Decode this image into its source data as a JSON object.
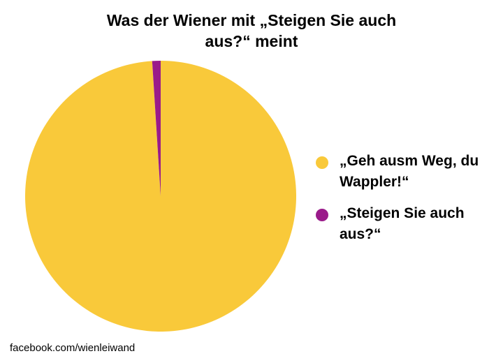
{
  "chart_data": {
    "type": "pie",
    "title": "Was der Wiener mit „Steigen Sie auch aus?“ meint",
    "categories": [
      "„Geh ausm Weg, du Wappler!“",
      "„Steigen Sie auch aus?“"
    ],
    "values": [
      99,
      1
    ],
    "colors": [
      "#f9c93a",
      "#9a1b8a"
    ],
    "legend_position": "right",
    "start_angle": "top",
    "direction": "clockwise"
  },
  "source": "facebook.com/wienleiwand"
}
